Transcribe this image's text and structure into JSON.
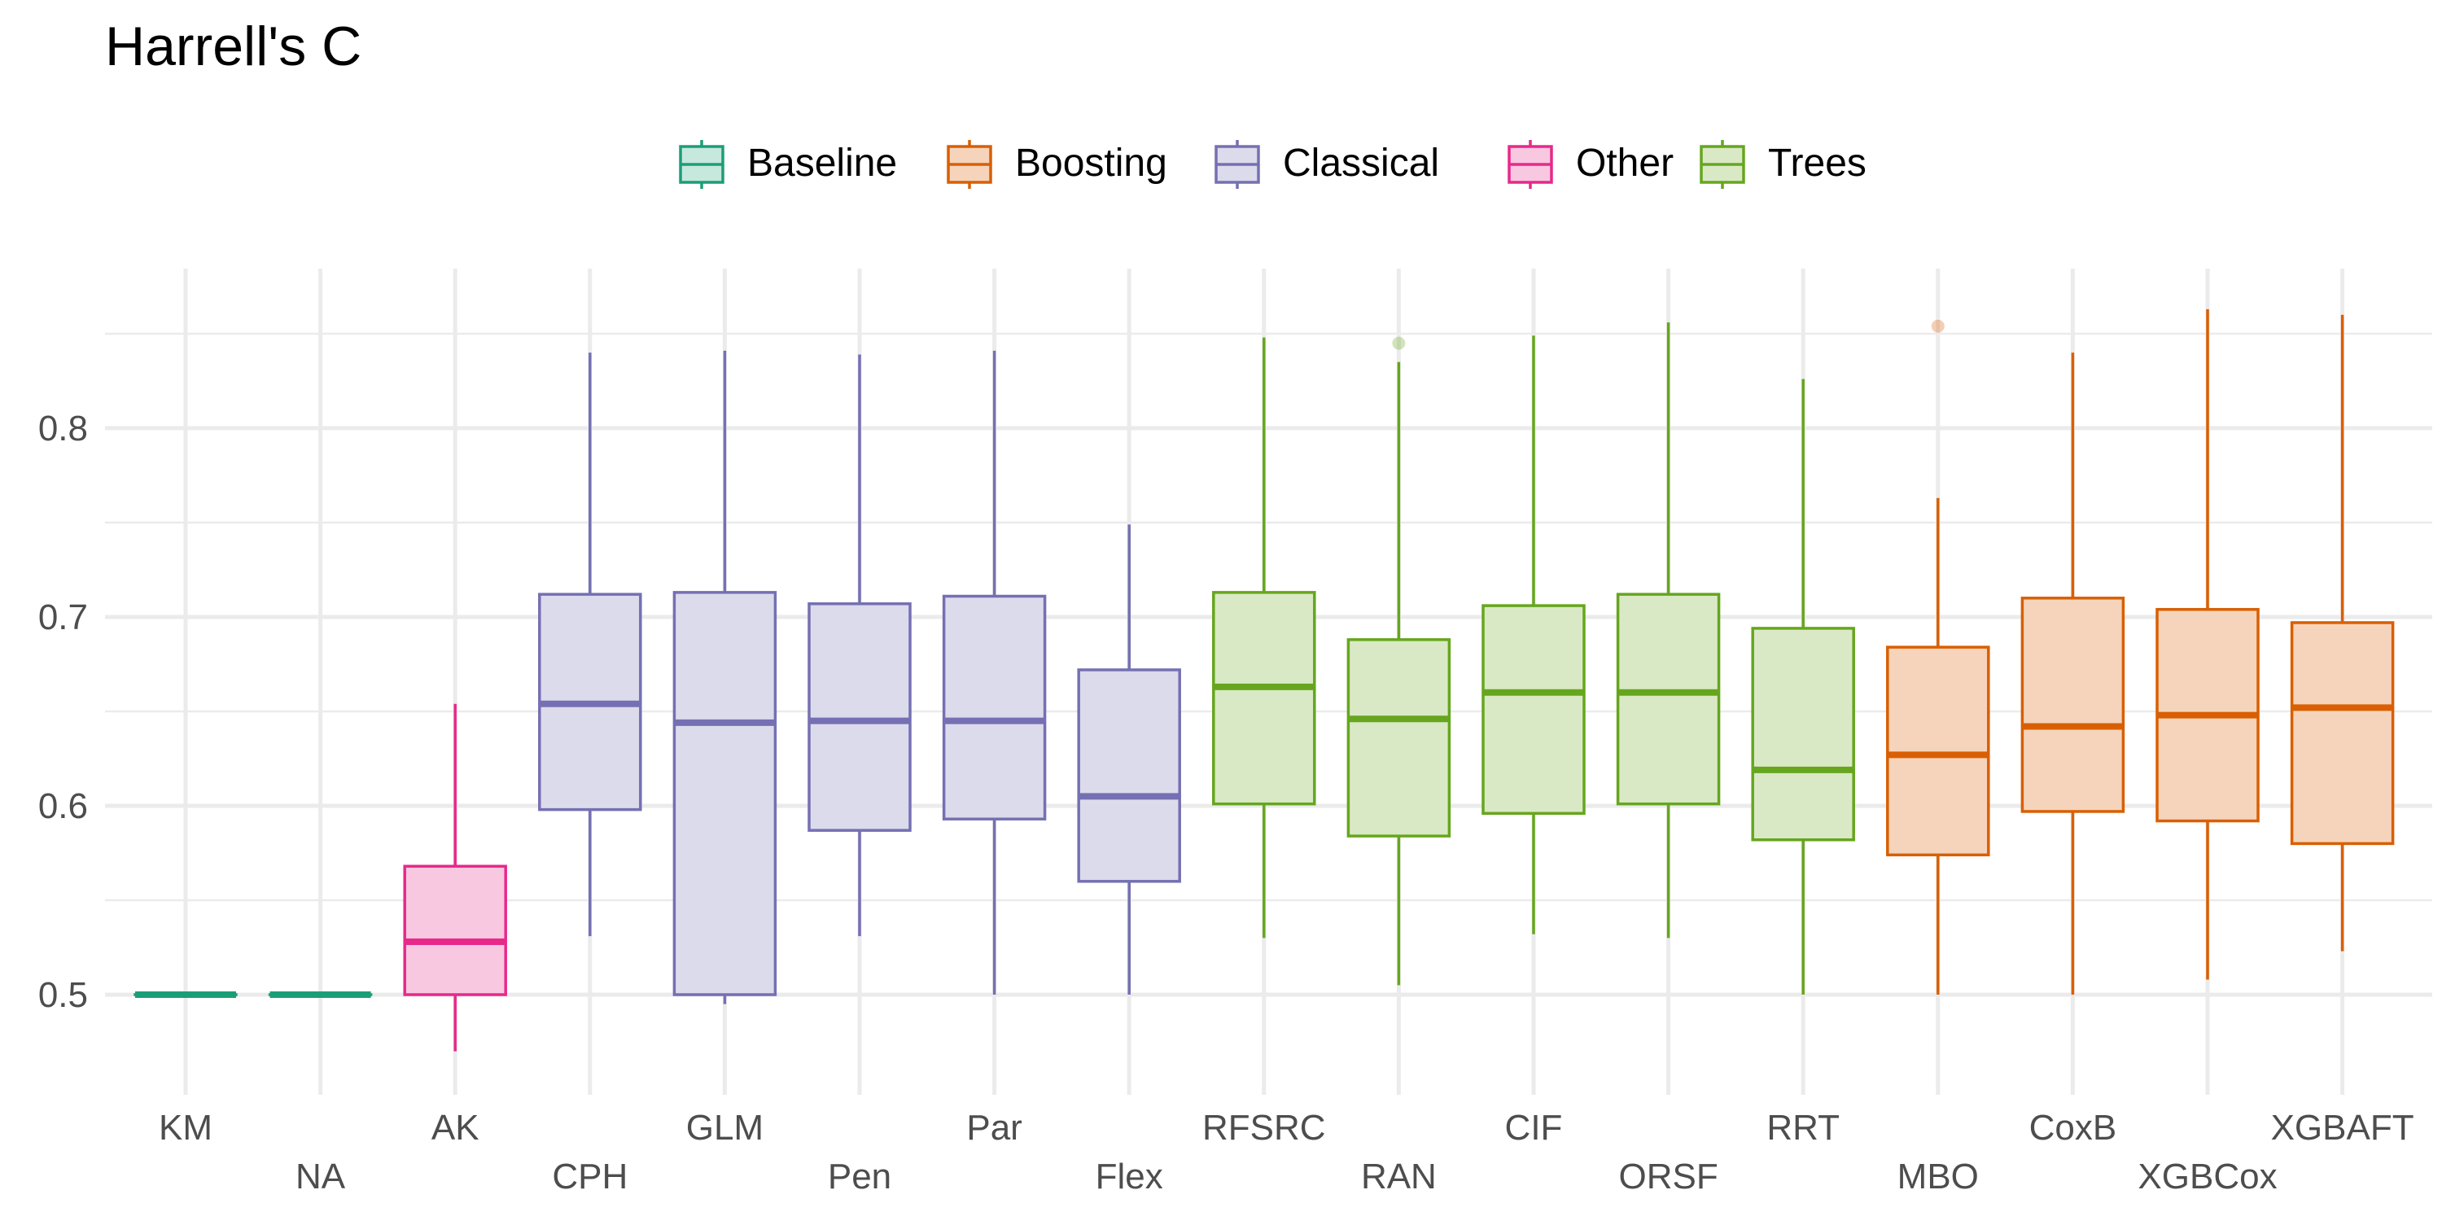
{
  "chart_data": {
    "type": "box",
    "title": "Harrell's C",
    "xlabel": "",
    "ylabel": "",
    "ylim": [
      0.45,
      0.87
    ],
    "yticks": [
      0.5,
      0.6,
      0.7,
      0.8
    ],
    "ytick_labels": [
      "0.5",
      "0.6",
      "0.7",
      "0.8"
    ],
    "grid": true,
    "legend_position": "top",
    "legend": [
      {
        "label": "Baseline",
        "group": "Baseline"
      },
      {
        "label": "Boosting",
        "group": "Boosting"
      },
      {
        "label": "Classical",
        "group": "Classical"
      },
      {
        "label": "Other",
        "group": "Other"
      },
      {
        "label": "Trees",
        "group": "Trees"
      }
    ],
    "group_colors": {
      "Baseline": {
        "line": "#1b9e77",
        "fill": "#c6e8dd"
      },
      "Boosting": {
        "line": "#d95f02",
        "fill": "#f5d4bb"
      },
      "Classical": {
        "line": "#7570b3",
        "fill": "#dcdbeb"
      },
      "Other": {
        "line": "#e7298a",
        "fill": "#f8c8e1"
      },
      "Trees": {
        "line": "#66a61e",
        "fill": "#d9e9c5"
      }
    },
    "categories": [
      "KM",
      "NA",
      "AK",
      "CPH",
      "GLM",
      "Pen",
      "Par",
      "Flex",
      "RFSRC",
      "RAN",
      "CIF",
      "ORSF",
      "RRT",
      "MBO",
      "CoxB",
      "XGBCox",
      "XGBAFT"
    ],
    "boxes": [
      {
        "category": "KM",
        "group": "Baseline",
        "whisker_low": 0.5,
        "q1": 0.5,
        "median": 0.5,
        "q3": 0.5,
        "whisker_high": 0.5,
        "outliers": []
      },
      {
        "category": "NA",
        "group": "Baseline",
        "whisker_low": 0.5,
        "q1": 0.5,
        "median": 0.5,
        "q3": 0.5,
        "whisker_high": 0.5,
        "outliers": []
      },
      {
        "category": "AK",
        "group": "Other",
        "whisker_low": 0.47,
        "q1": 0.5,
        "median": 0.528,
        "q3": 0.568,
        "whisker_high": 0.654,
        "outliers": []
      },
      {
        "category": "CPH",
        "group": "Classical",
        "whisker_low": 0.531,
        "q1": 0.598,
        "median": 0.654,
        "q3": 0.712,
        "whisker_high": 0.84,
        "outliers": []
      },
      {
        "category": "GLM",
        "group": "Classical",
        "whisker_low": 0.495,
        "q1": 0.5,
        "median": 0.644,
        "q3": 0.713,
        "whisker_high": 0.841,
        "outliers": []
      },
      {
        "category": "Pen",
        "group": "Classical",
        "whisker_low": 0.531,
        "q1": 0.587,
        "median": 0.645,
        "q3": 0.707,
        "whisker_high": 0.839,
        "outliers": []
      },
      {
        "category": "Par",
        "group": "Classical",
        "whisker_low": 0.5,
        "q1": 0.593,
        "median": 0.645,
        "q3": 0.711,
        "whisker_high": 0.841,
        "outliers": []
      },
      {
        "category": "Flex",
        "group": "Classical",
        "whisker_low": 0.5,
        "q1": 0.56,
        "median": 0.605,
        "q3": 0.672,
        "whisker_high": 0.749,
        "outliers": []
      },
      {
        "category": "RFSRC",
        "group": "Trees",
        "whisker_low": 0.53,
        "q1": 0.601,
        "median": 0.663,
        "q3": 0.713,
        "whisker_high": 0.848,
        "outliers": []
      },
      {
        "category": "RAN",
        "group": "Trees",
        "whisker_low": 0.505,
        "q1": 0.584,
        "median": 0.646,
        "q3": 0.688,
        "whisker_high": 0.835,
        "outliers": [
          0.845
        ]
      },
      {
        "category": "CIF",
        "group": "Trees",
        "whisker_low": 0.532,
        "q1": 0.596,
        "median": 0.66,
        "q3": 0.706,
        "whisker_high": 0.849,
        "outliers": []
      },
      {
        "category": "ORSF",
        "group": "Trees",
        "whisker_low": 0.53,
        "q1": 0.601,
        "median": 0.66,
        "q3": 0.712,
        "whisker_high": 0.856,
        "outliers": []
      },
      {
        "category": "RRT",
        "group": "Trees",
        "whisker_low": 0.5,
        "q1": 0.582,
        "median": 0.619,
        "q3": 0.694,
        "whisker_high": 0.826,
        "outliers": []
      },
      {
        "category": "MBO",
        "group": "Boosting",
        "whisker_low": 0.5,
        "q1": 0.574,
        "median": 0.627,
        "q3": 0.684,
        "whisker_high": 0.763,
        "outliers": [
          0.854
        ]
      },
      {
        "category": "CoxB",
        "group": "Boosting",
        "whisker_low": 0.5,
        "q1": 0.597,
        "median": 0.642,
        "q3": 0.71,
        "whisker_high": 0.84,
        "outliers": []
      },
      {
        "category": "XGBCox",
        "group": "Boosting",
        "whisker_low": 0.508,
        "q1": 0.592,
        "median": 0.648,
        "q3": 0.704,
        "whisker_high": 0.863,
        "outliers": []
      },
      {
        "category": "XGBAFT",
        "group": "Boosting",
        "whisker_low": 0.523,
        "q1": 0.58,
        "median": 0.652,
        "q3": 0.697,
        "whisker_high": 0.86,
        "outliers": []
      }
    ]
  }
}
